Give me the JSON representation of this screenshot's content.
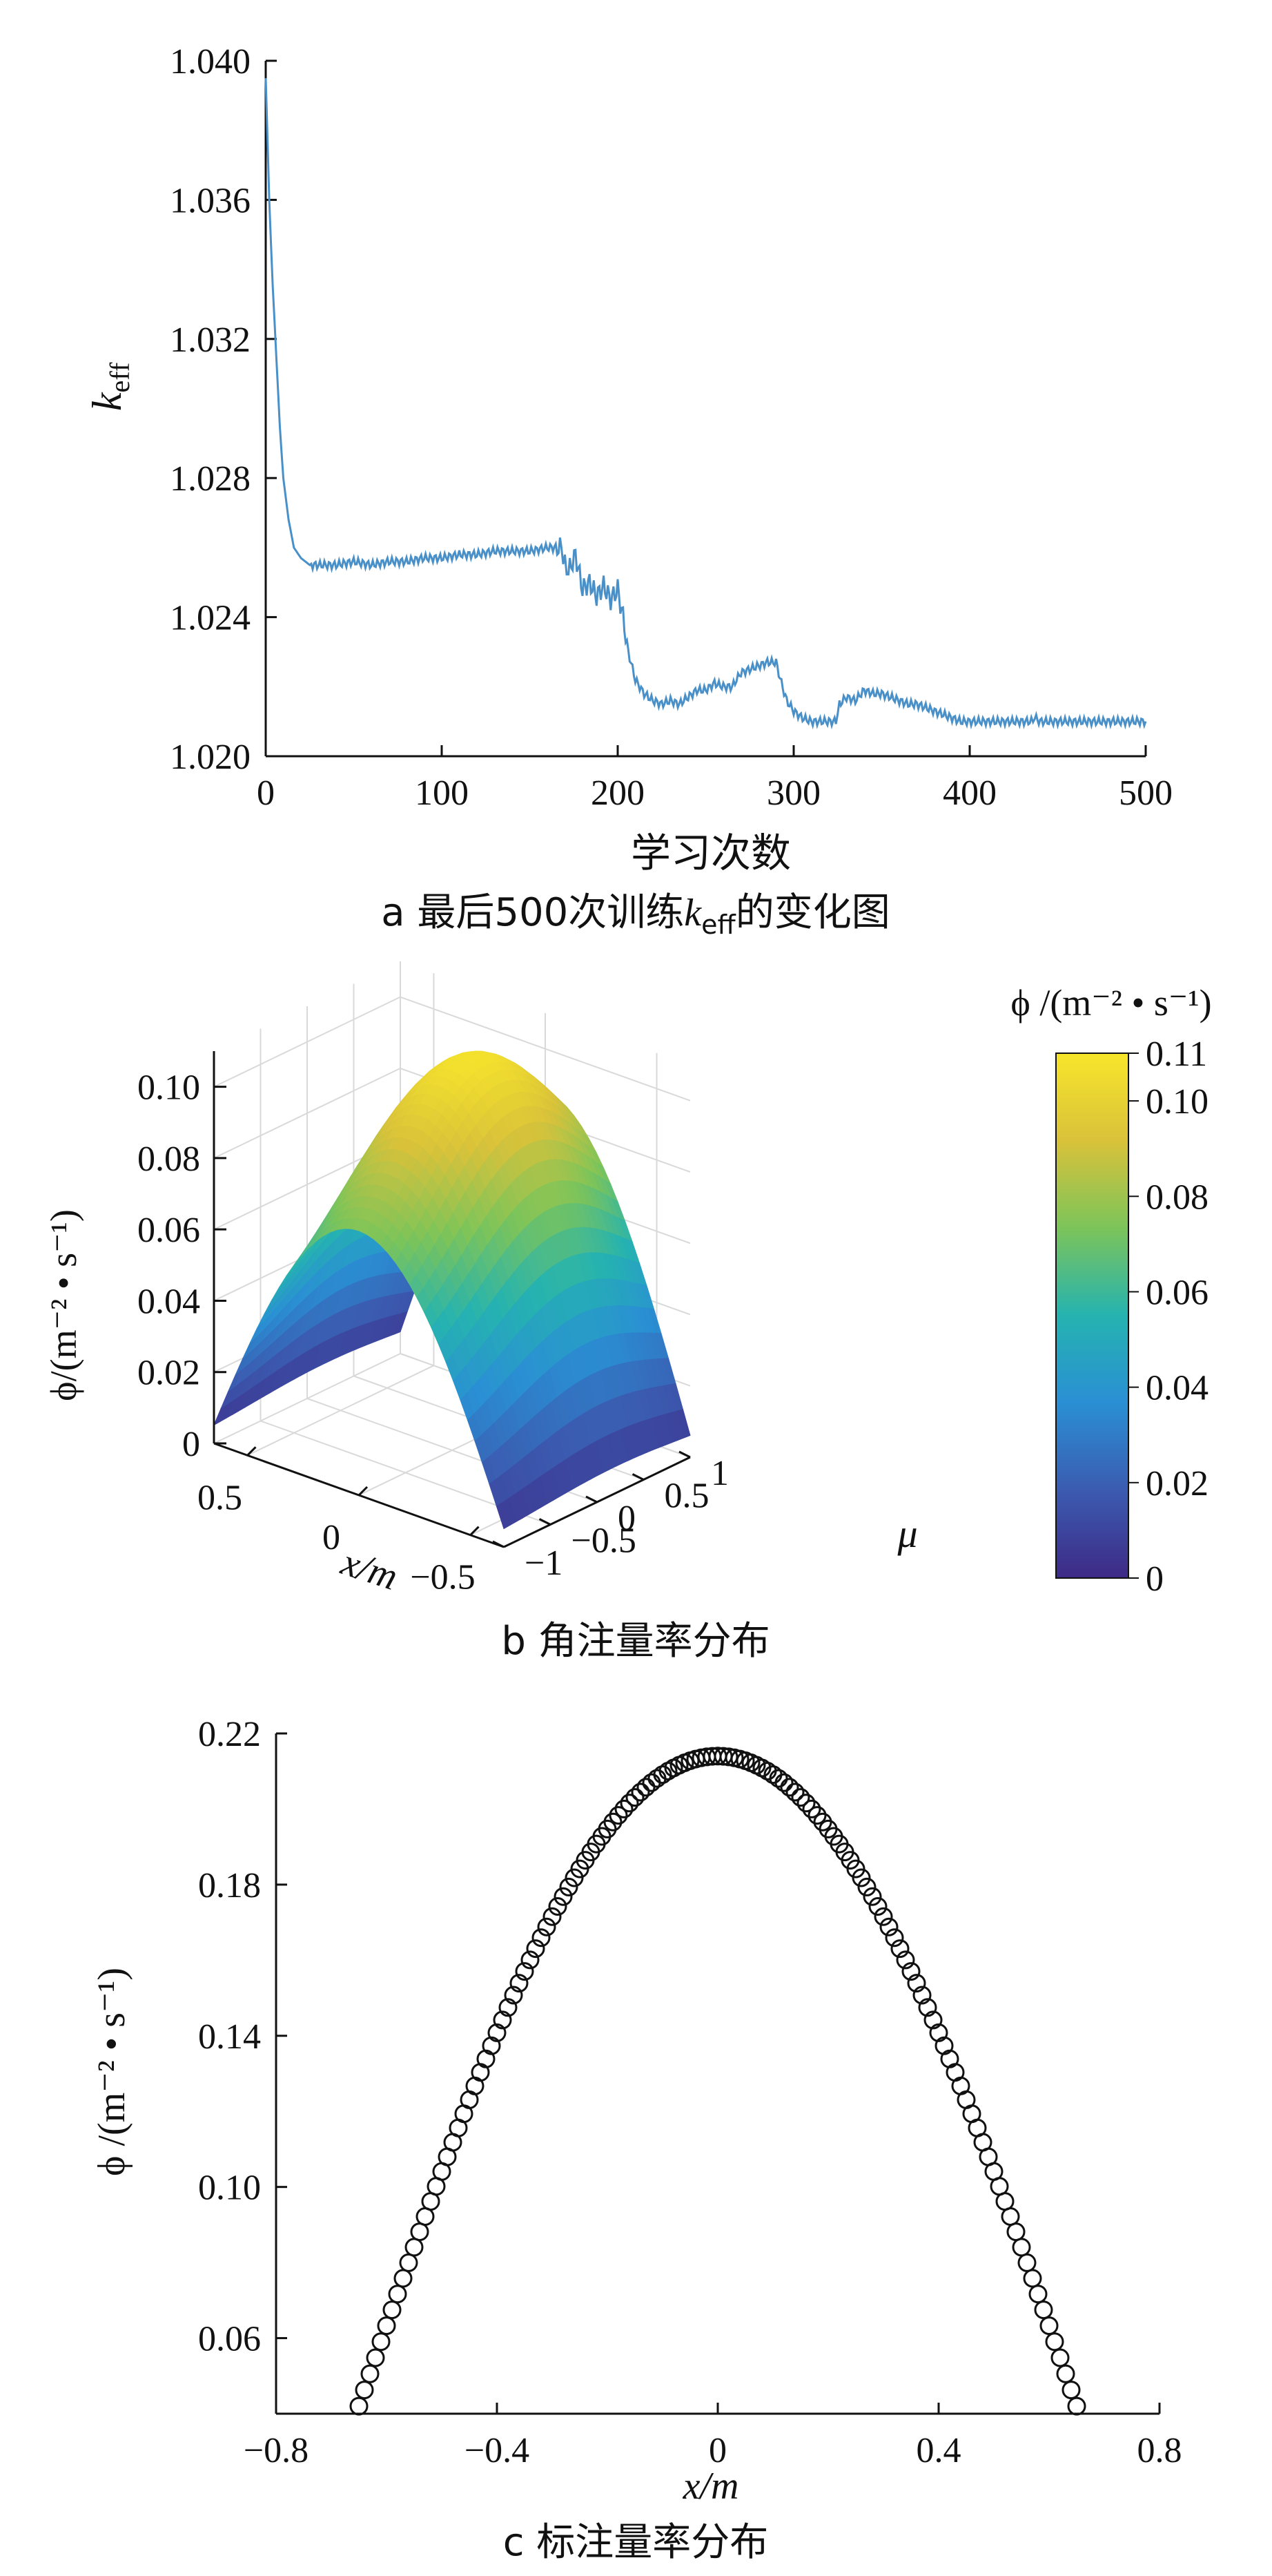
{
  "panel_a": {
    "caption_prefix": "a  最后500次训练",
    "caption_k": "k",
    "caption_sub": "eff",
    "caption_suffix": "的变化图"
  },
  "panel_b": {
    "caption": "b  角注量率分布",
    "colorbar_title": "ϕ /(m⁻² • s⁻¹)",
    "colorbar_ticks": [
      "0",
      "0.02",
      "0.04",
      "0.06",
      "0.08",
      "0.10",
      "0.11"
    ],
    "colormap": [
      "#3e2a86",
      "#3b5bb0",
      "#2a8fd4",
      "#25b3b0",
      "#7cc45a",
      "#d9c23a",
      "#f7e52b"
    ]
  },
  "panel_c": {
    "caption": "c  标注量率分布"
  },
  "chart_data": [
    {
      "type": "line",
      "title": "",
      "xlabel": "学习次数",
      "ylabel_k": "k",
      "ylabel_sub": "eff",
      "xlim": [
        0,
        500
      ],
      "ylim": [
        1.02,
        1.04
      ],
      "xticks": [
        "0",
        "100",
        "200",
        "300",
        "400",
        "500"
      ],
      "yticks": [
        "1.020",
        "1.024",
        "1.028",
        "1.032",
        "1.036",
        "1.040"
      ],
      "line_color": "#4a90c8",
      "series": [
        {
          "x": [
            0,
            2,
            4,
            6,
            8,
            10,
            13,
            16,
            20,
            25,
            30,
            40,
            50,
            60,
            70,
            80,
            90,
            100,
            110,
            120,
            130,
            140,
            150,
            160,
            168,
            170,
            172,
            176,
            180,
            184,
            188,
            192,
            196,
            200,
            203,
            206,
            210,
            215,
            220,
            225,
            230,
            235,
            240,
            245,
            250,
            255,
            260,
            265,
            270,
            275,
            280,
            285,
            290,
            293,
            296,
            300,
            305,
            310,
            315,
            320,
            324,
            326,
            330,
            335,
            340,
            345,
            350,
            355,
            360,
            365,
            370,
            375,
            380,
            385,
            390,
            395,
            400,
            410,
            420,
            430,
            435,
            437,
            440,
            450,
            460,
            470,
            480,
            490,
            500
          ],
          "y": [
            1.0395,
            1.036,
            1.0335,
            1.0315,
            1.0295,
            1.028,
            1.0268,
            1.026,
            1.0257,
            1.0255,
            1.0255,
            1.0255,
            1.0256,
            1.0255,
            1.0256,
            1.0256,
            1.0257,
            1.0257,
            1.0258,
            1.0258,
            1.0259,
            1.0259,
            1.0259,
            1.026,
            1.026,
            1.0255,
            1.0253,
            1.0258,
            1.0248,
            1.025,
            1.0246,
            1.0249,
            1.0245,
            1.0248,
            1.024,
            1.023,
            1.0222,
            1.0218,
            1.0216,
            1.0215,
            1.0216,
            1.0215,
            1.0217,
            1.0219,
            1.0219,
            1.0221,
            1.022,
            1.022,
            1.0224,
            1.0225,
            1.0226,
            1.0227,
            1.0227,
            1.0221,
            1.0216,
            1.0213,
            1.0211,
            1.021,
            1.021,
            1.021,
            1.021,
            1.0215,
            1.0217,
            1.0216,
            1.0219,
            1.0218,
            1.0218,
            1.0217,
            1.0216,
            1.0215,
            1.0215,
            1.0214,
            1.0213,
            1.0212,
            1.0211,
            1.021,
            1.021,
            1.021,
            1.021,
            1.021,
            1.021,
            1.0211,
            1.021,
            1.021,
            1.021,
            1.021,
            1.021,
            1.021,
            1.021
          ]
        }
      ]
    },
    {
      "type": "surface",
      "title": "",
      "xlabel": "x/m",
      "ylabel": "μ",
      "zlabel": "ϕ/(m⁻² • s⁻¹)",
      "xticks": [
        "0.5",
        "0",
        "−0.5"
      ],
      "yticks": [
        "−1",
        "−0.5",
        "0",
        "0.5",
        "1"
      ],
      "zticks": [
        "0",
        "0.02",
        "0.04",
        "0.06",
        "0.08",
        "0.10"
      ],
      "xlim": [
        -0.65,
        0.65
      ],
      "ylim": [
        -1,
        1
      ],
      "zlim": [
        0,
        0.11
      ],
      "clim": [
        0,
        0.11
      ]
    },
    {
      "type": "scatter",
      "title": "",
      "xlabel": "x/m",
      "ylabel": "ϕ /(m⁻² • s⁻¹)",
      "xlim": [
        -0.8,
        0.8
      ],
      "ylim": [
        0.04,
        0.22
      ],
      "xticks": [
        "−0.8",
        "−0.4",
        "0",
        "0.4",
        "0.8"
      ],
      "yticks": [
        "0.06",
        "0.10",
        "0.14",
        "0.18",
        "0.22"
      ],
      "marker": "open-circle",
      "x_range": [
        -0.65,
        0.65
      ],
      "point_count": 131,
      "peak": [
        0.0,
        0.214
      ],
      "edge_value": 0.042
    }
  ]
}
